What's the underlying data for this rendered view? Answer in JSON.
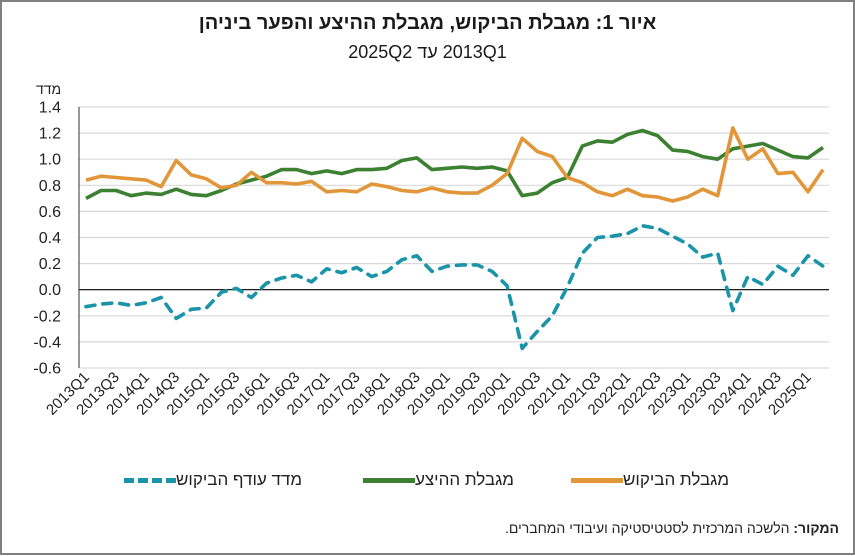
{
  "chart_data": {
    "type": "line",
    "title": "איור 1: מגבלת הביקוש, מגבלת ההיצע והפער ביניהן",
    "subtitle": "2013Q1 עד 2025Q2",
    "ylabel": "מדד",
    "xlabel": "",
    "ylim": [
      -0.6,
      1.4
    ],
    "yticks": [
      "1.4",
      "1.2",
      "1.0",
      "0.8",
      "0.6",
      "0.4",
      "0.2",
      "0.0",
      "-0.2",
      "-0.4",
      "-0.6"
    ],
    "ytick_values": [
      1.4,
      1.2,
      1.0,
      0.8,
      0.6,
      0.4,
      0.2,
      0.0,
      -0.2,
      -0.4,
      -0.6
    ],
    "grid": true,
    "legend_position": "bottom",
    "x": [
      "2013Q1",
      "2013Q2",
      "2013Q3",
      "2013Q4",
      "2014Q1",
      "2014Q2",
      "2014Q3",
      "2014Q4",
      "2015Q1",
      "2015Q2",
      "2015Q3",
      "2015Q4",
      "2016Q1",
      "2016Q2",
      "2016Q3",
      "2016Q4",
      "2017Q1",
      "2017Q2",
      "2017Q3",
      "2017Q4",
      "2018Q1",
      "2018Q2",
      "2018Q3",
      "2018Q4",
      "2019Q1",
      "2019Q2",
      "2019Q3",
      "2019Q4",
      "2020Q1",
      "2020Q2",
      "2020Q3",
      "2020Q4",
      "2021Q1",
      "2021Q2",
      "2021Q3",
      "2021Q4",
      "2022Q1",
      "2022Q2",
      "2022Q3",
      "2022Q4",
      "2023Q1",
      "2023Q2",
      "2023Q3",
      "2023Q4",
      "2024Q1",
      "2024Q2",
      "2024Q3",
      "2024Q4",
      "2025Q1",
      "2025Q2"
    ],
    "xtick_labels": [
      "2013Q1",
      "2013Q3",
      "2014Q1",
      "2014Q3",
      "2015Q1",
      "2015Q3",
      "2016Q1",
      "2016Q3",
      "2017Q1",
      "2017Q3",
      "2018Q1",
      "2018Q3",
      "2019Q1",
      "2019Q3",
      "2020Q1",
      "2020Q3",
      "2021Q1",
      "2021Q3",
      "2022Q1",
      "2022Q3",
      "2023Q1",
      "2023Q3",
      "2024Q1",
      "2024Q3",
      "2025Q1"
    ],
    "series": [
      {
        "name": "מגבלת הביקוש",
        "color": "#E2963A",
        "style": "solid",
        "values": [
          0.84,
          0.87,
          0.86,
          0.85,
          0.84,
          0.79,
          0.99,
          0.88,
          0.85,
          0.78,
          0.8,
          0.9,
          0.82,
          0.82,
          0.81,
          0.83,
          0.75,
          0.76,
          0.75,
          0.81,
          0.79,
          0.76,
          0.75,
          0.78,
          0.75,
          0.74,
          0.74,
          0.8,
          0.89,
          1.16,
          1.06,
          1.02,
          0.86,
          0.82,
          0.75,
          0.72,
          0.77,
          0.72,
          0.71,
          0.68,
          0.71,
          0.77,
          0.72,
          1.24,
          1.0,
          1.08,
          0.89,
          0.9,
          0.75,
          0.92
        ]
      },
      {
        "name": "מגבלת ההיצע",
        "color": "#3C8032",
        "style": "solid",
        "values": [
          0.7,
          0.76,
          0.76,
          0.72,
          0.74,
          0.73,
          0.77,
          0.73,
          0.72,
          0.76,
          0.81,
          0.84,
          0.87,
          0.92,
          0.92,
          0.89,
          0.91,
          0.89,
          0.92,
          0.92,
          0.93,
          0.99,
          1.01,
          0.92,
          0.93,
          0.94,
          0.93,
          0.94,
          0.91,
          0.72,
          0.74,
          0.82,
          0.86,
          1.1,
          1.14,
          1.13,
          1.19,
          1.22,
          1.18,
          1.07,
          1.06,
          1.02,
          1.0,
          1.08,
          1.1,
          1.12,
          1.07,
          1.02,
          1.01,
          1.09
        ]
      },
      {
        "name": "מדד עודף הביקוש",
        "color": "#1A94A8",
        "style": "dashed",
        "values": [
          -0.13,
          -0.11,
          -0.1,
          -0.12,
          -0.1,
          -0.06,
          -0.22,
          -0.15,
          -0.14,
          -0.02,
          0.01,
          -0.06,
          0.05,
          0.09,
          0.11,
          0.06,
          0.16,
          0.13,
          0.17,
          0.1,
          0.14,
          0.23,
          0.26,
          0.14,
          0.18,
          0.19,
          0.19,
          0.14,
          0.03,
          -0.45,
          -0.32,
          -0.2,
          0.02,
          0.28,
          0.4,
          0.41,
          0.43,
          0.49,
          0.47,
          0.41,
          0.35,
          0.25,
          0.28,
          -0.16,
          0.1,
          0.04,
          0.18,
          0.11,
          0.26,
          0.18
        ]
      }
    ],
    "legend": [
      {
        "label": "מגבלת הביקוש",
        "color": "#E2963A",
        "style": "solid"
      },
      {
        "label": "מגבלת ההיצע",
        "color": "#3C8032",
        "style": "solid"
      },
      {
        "label": "מדד עודף הביקוש",
        "color": "#1A94A8",
        "style": "dashed"
      }
    ]
  },
  "source": {
    "label": "המקור:",
    "text": " הלשכה המרכזית לסטטיסטיקה ועיבודי המחברים."
  }
}
